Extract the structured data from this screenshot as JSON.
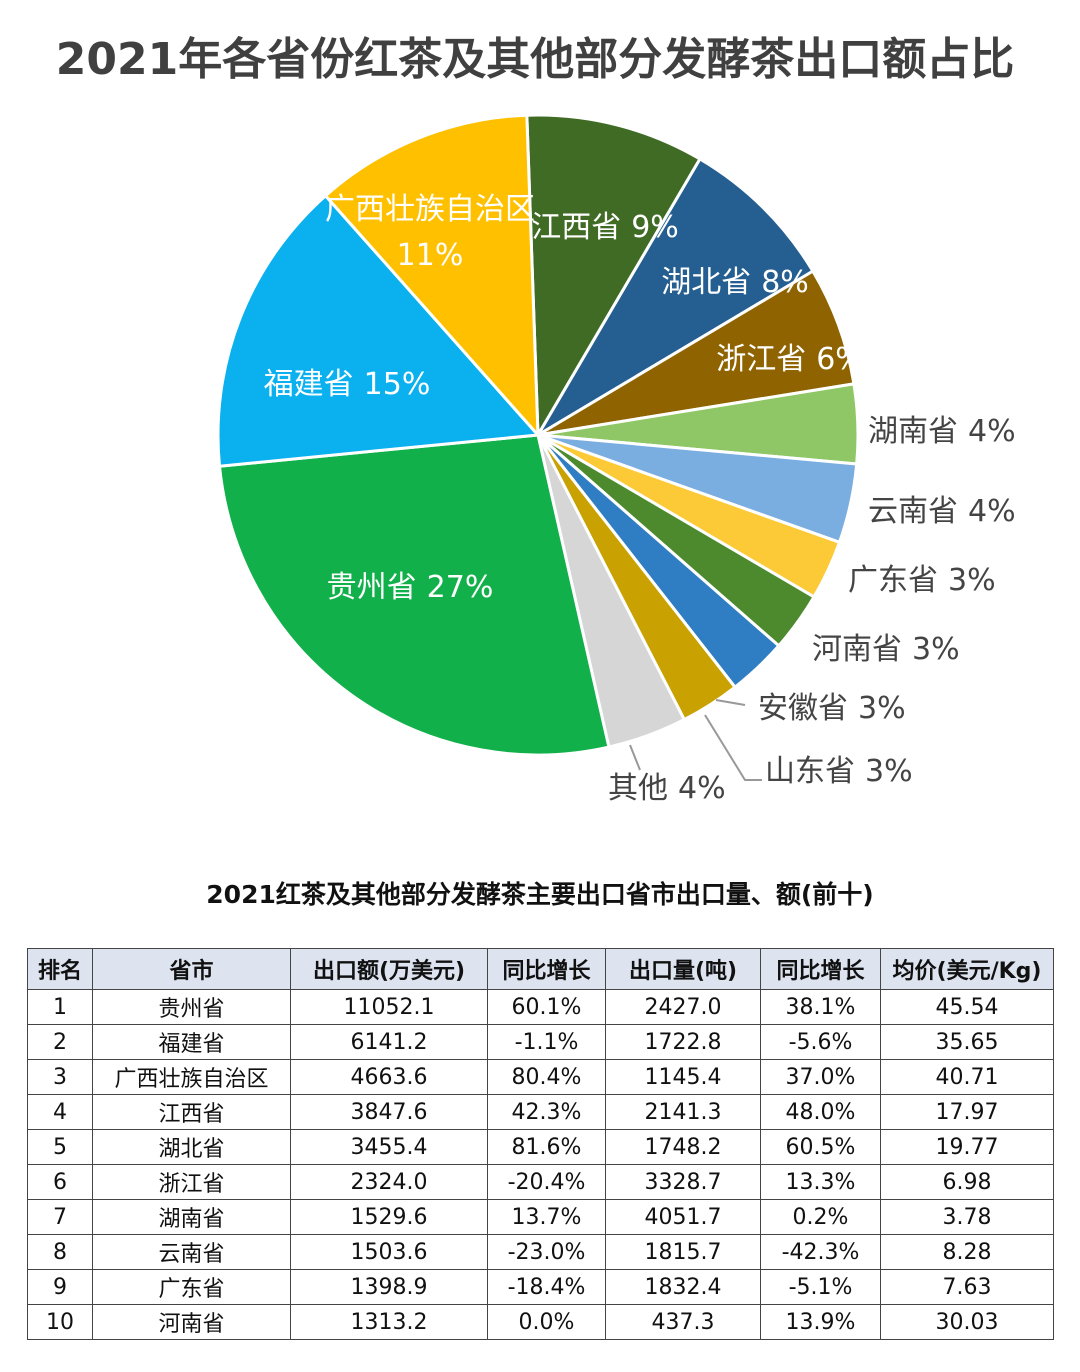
{
  "chart_data": {
    "type": "pie",
    "title": "2021年各省份红茶及其他部分发酵茶出口额占比",
    "categories": [
      "江西省",
      "湖北省",
      "浙江省",
      "湖南省",
      "云南省",
      "广东省",
      "河南省",
      "安徽省",
      "山东省",
      "其他",
      "贵州省",
      "福建省",
      "广西壮族自治区"
    ],
    "values": [
      9,
      8,
      6,
      4,
      4,
      3,
      3,
      3,
      3,
      4,
      27,
      15,
      11
    ],
    "value_labels": [
      "9%",
      "8%",
      "6%",
      "4%",
      "4%",
      "3%",
      "3%",
      "3%",
      "3%",
      "4%",
      "27%",
      "15%",
      "11%"
    ],
    "colors": [
      "#3f6b25",
      "#255e91",
      "#8f6400",
      "#8fc766",
      "#7aaee0",
      "#fcc937",
      "#4d8a2e",
      "#2f7ec4",
      "#c9a100",
      "#d6d6d6",
      "#12b04a",
      "#0bb0ef",
      "#ffc000"
    ]
  },
  "table": {
    "title": "2021红茶及其他部分发酵茶主要出口省市出口量、额(前十)",
    "header": [
      "排名",
      "省市",
      "出口额(万美元)",
      "同比增长",
      "出口量(吨)",
      "同比增长",
      "均价(美元/Kg)"
    ],
    "rows": [
      [
        "1",
        "贵州省",
        "11052.1",
        "60.1%",
        "2427.0",
        "38.1%",
        "45.54"
      ],
      [
        "2",
        "福建省",
        "6141.2",
        "-1.1%",
        "1722.8",
        "-5.6%",
        "35.65"
      ],
      [
        "3",
        "广西壮族自治区",
        "4663.6",
        "80.4%",
        "1145.4",
        "37.0%",
        "40.71"
      ],
      [
        "4",
        "江西省",
        "3847.6",
        "42.3%",
        "2141.3",
        "48.0%",
        "17.97"
      ],
      [
        "5",
        "湖北省",
        "3455.4",
        "81.6%",
        "1748.2",
        "60.5%",
        "19.77"
      ],
      [
        "6",
        "浙江省",
        "2324.0",
        "-20.4%",
        "3328.7",
        "13.3%",
        "6.98"
      ],
      [
        "7",
        "湖南省",
        "1529.6",
        "13.7%",
        "4051.7",
        "0.2%",
        "3.78"
      ],
      [
        "8",
        "云南省",
        "1503.6",
        "-23.0%",
        "1815.7",
        "-42.3%",
        "8.28"
      ],
      [
        "9",
        "广东省",
        "1398.9",
        "-18.4%",
        "1832.4",
        "-5.1%",
        "7.63"
      ],
      [
        "10",
        "河南省",
        "1313.2",
        "0.0%",
        "437.3",
        "13.9%",
        "30.03"
      ]
    ]
  }
}
